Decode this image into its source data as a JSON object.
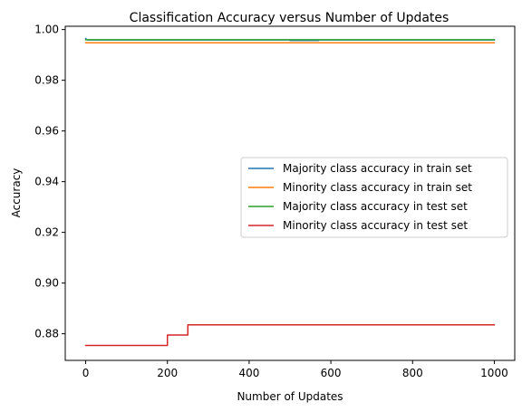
{
  "chart_data": {
    "type": "line",
    "title": "Classification Accuracy versus Number of Updates",
    "xlabel": "Number of Updates",
    "ylabel": "Accuracy",
    "xlim": [
      -50,
      1050
    ],
    "ylim": [
      0.8695,
      1.0013
    ],
    "xticks": [
      0,
      200,
      400,
      600,
      800,
      1000
    ],
    "xtick_labels": [
      "0",
      "200",
      "400",
      "600",
      "800",
      "1000"
    ],
    "yticks": [
      0.88,
      0.9,
      0.92,
      0.94,
      0.96,
      0.98,
      1.0
    ],
    "ytick_labels": [
      "0.88",
      "0.90",
      "0.92",
      "0.94",
      "0.96",
      "0.98",
      "1.00"
    ],
    "grid": false,
    "legend_position": "center-right",
    "series": [
      {
        "name": "Majority class accuracy in train set",
        "color": "#1f77b4",
        "points": [
          [
            0,
            0.9964
          ],
          [
            5,
            0.9959
          ],
          [
            500,
            0.9959
          ],
          [
            500,
            0.9957
          ],
          [
            570,
            0.9957
          ],
          [
            570,
            0.9959
          ],
          [
            1000,
            0.9959
          ]
        ]
      },
      {
        "name": "Minority class accuracy in train set",
        "color": "#ff7f0e",
        "points": [
          [
            0,
            0.9948
          ],
          [
            1000,
            0.9948
          ]
        ]
      },
      {
        "name": "Majority class accuracy in test set",
        "color": "#2ca02c",
        "points": [
          [
            0,
            0.996
          ],
          [
            1000,
            0.996
          ]
        ]
      },
      {
        "name": "Minority class accuracy in test set",
        "color": "#d62728",
        "points": [
          [
            0,
            0.8754
          ],
          [
            200,
            0.8754
          ],
          [
            200,
            0.8795
          ],
          [
            250,
            0.8795
          ],
          [
            250,
            0.8835
          ],
          [
            1000,
            0.8835
          ]
        ]
      }
    ]
  }
}
